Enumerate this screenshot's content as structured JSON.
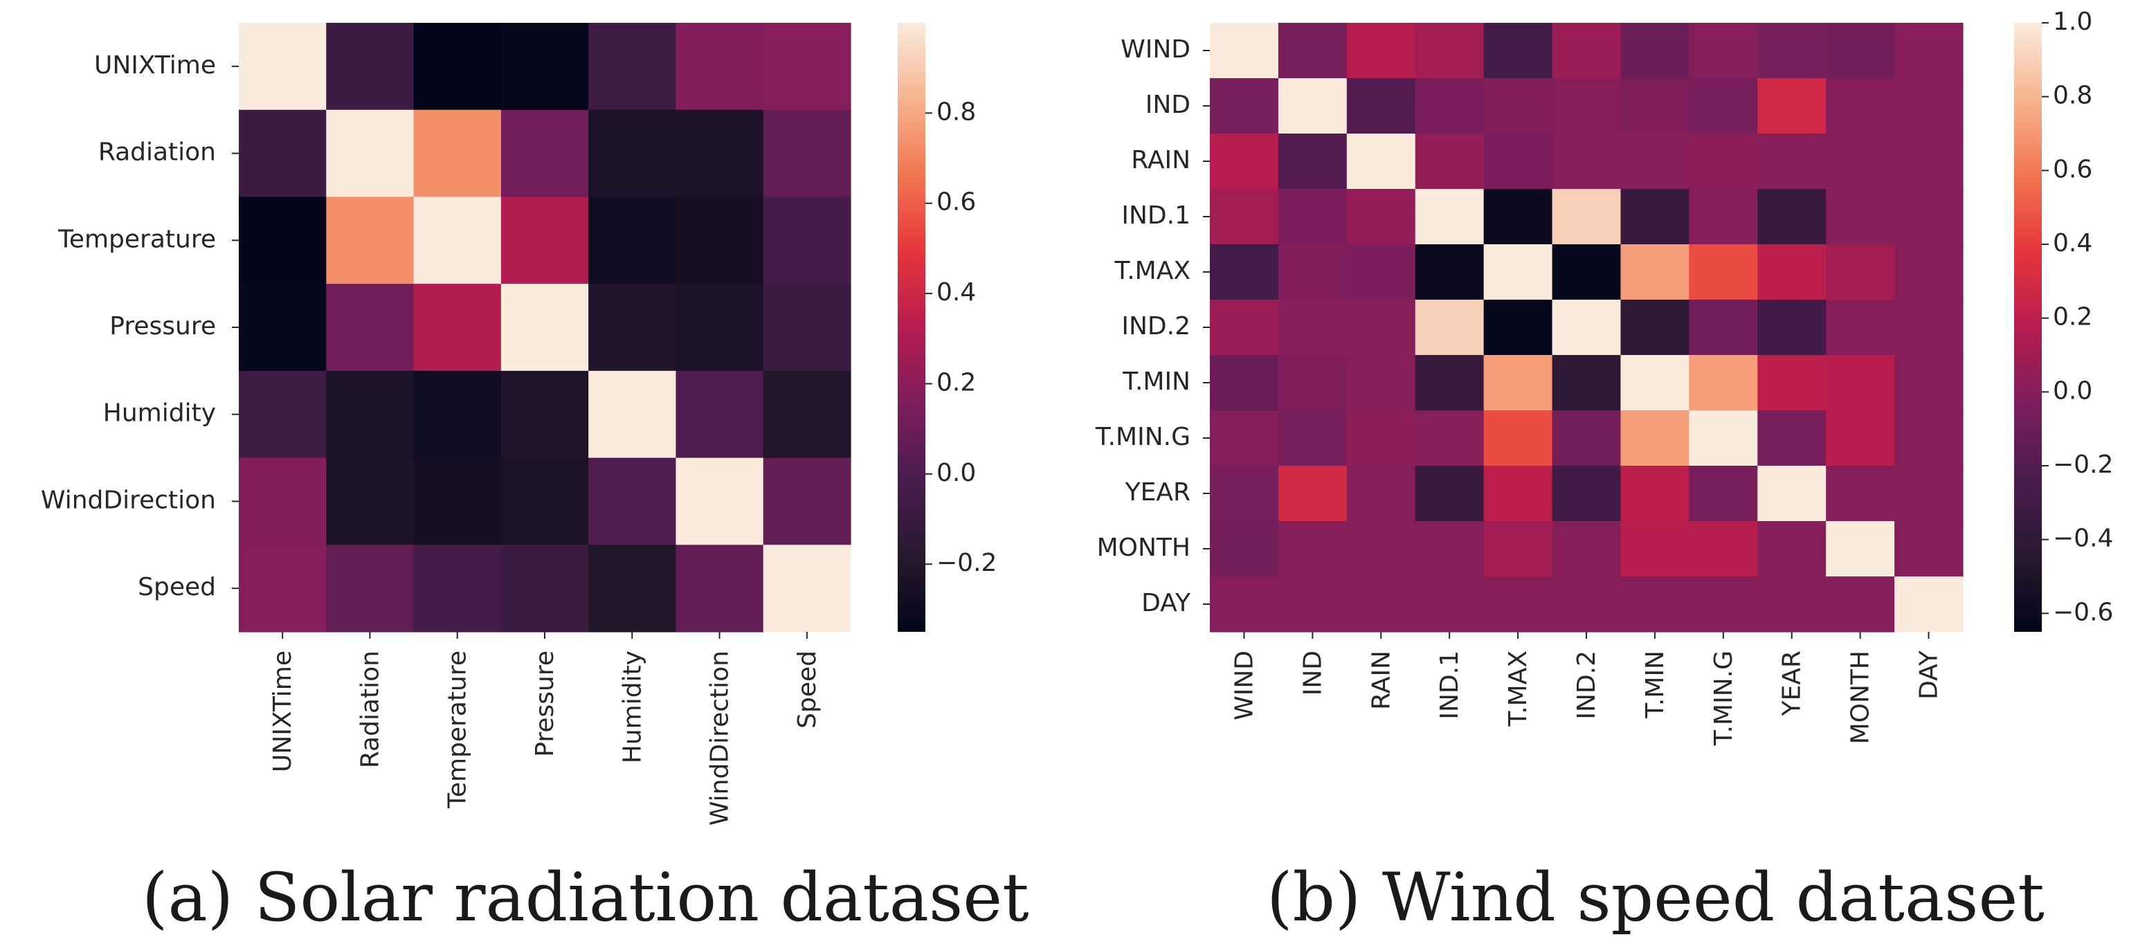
{
  "chart_data": [
    {
      "type": "heatmap",
      "caption": "(a) Solar radiation dataset",
      "labels": [
        "UNIXTime",
        "Radiation",
        "Temperature",
        "Pressure",
        "Humidity",
        "WindDirection",
        "Speed"
      ],
      "values": [
        [
          1.0,
          -0.08,
          -0.35,
          -0.33,
          -0.07,
          0.17,
          0.18
        ],
        [
          -0.08,
          1.0,
          0.73,
          0.12,
          -0.23,
          -0.23,
          0.07
        ],
        [
          -0.35,
          0.73,
          1.0,
          0.31,
          -0.29,
          -0.26,
          -0.03
        ],
        [
          -0.33,
          0.12,
          0.31,
          1.0,
          -0.22,
          -0.23,
          -0.08
        ],
        [
          -0.07,
          -0.23,
          -0.29,
          -0.22,
          1.0,
          -0.0,
          -0.21
        ],
        [
          0.17,
          -0.23,
          -0.26,
          -0.23,
          -0.0,
          1.0,
          0.07
        ],
        [
          0.18,
          0.07,
          -0.03,
          -0.08,
          -0.21,
          0.07,
          1.0
        ]
      ],
      "colorbar": {
        "min": -0.35,
        "max": 1.0,
        "ticks": [
          "0.8",
          "0.6",
          "0.4",
          "0.2",
          "0.0",
          "−0.2"
        ],
        "tick_values": [
          0.8,
          0.6,
          0.4,
          0.2,
          0.0,
          -0.2
        ]
      },
      "colormap": "rocket"
    },
    {
      "type": "heatmap",
      "caption": "(b) Wind speed dataset",
      "labels": [
        "WIND",
        "IND",
        "RAIN",
        "IND.1",
        "T.MAX",
        "IND.2",
        "T.MIN",
        "T.MIN.G",
        "YEAR",
        "MONTH",
        "DAY"
      ],
      "values": [
        [
          1.0,
          -0.05,
          0.18,
          0.1,
          -0.28,
          0.08,
          -0.11,
          0.0,
          -0.05,
          -0.07,
          0.0
        ],
        [
          -0.05,
          1.0,
          -0.2,
          -0.03,
          -0.02,
          0.0,
          -0.02,
          -0.05,
          0.28,
          0.0,
          0.0
        ],
        [
          0.18,
          -0.2,
          1.0,
          0.05,
          -0.03,
          0.0,
          0.0,
          0.02,
          0.0,
          0.0,
          0.0
        ],
        [
          0.1,
          -0.03,
          0.05,
          1.0,
          -0.6,
          0.9,
          -0.35,
          0.0,
          -0.35,
          0.0,
          0.0
        ],
        [
          -0.28,
          -0.02,
          -0.03,
          -0.6,
          1.0,
          -0.62,
          0.72,
          0.45,
          0.2,
          0.1,
          0.0
        ],
        [
          0.08,
          0.0,
          0.0,
          0.9,
          -0.62,
          1.0,
          -0.4,
          -0.07,
          -0.3,
          0.0,
          0.0
        ],
        [
          -0.11,
          -0.02,
          0.0,
          -0.35,
          0.72,
          -0.4,
          1.0,
          0.72,
          0.2,
          0.18,
          0.0
        ],
        [
          0.0,
          -0.05,
          0.02,
          0.0,
          0.45,
          -0.07,
          0.72,
          1.0,
          -0.05,
          0.18,
          0.0
        ],
        [
          -0.05,
          0.28,
          0.0,
          -0.35,
          0.2,
          -0.3,
          0.2,
          -0.05,
          1.0,
          0.0,
          0.0
        ],
        [
          -0.07,
          0.0,
          0.0,
          0.0,
          0.1,
          0.0,
          0.18,
          0.18,
          0.0,
          1.0,
          0.0
        ],
        [
          0.0,
          0.0,
          0.0,
          0.0,
          0.0,
          0.0,
          0.0,
          0.0,
          0.0,
          0.0,
          1.0
        ]
      ],
      "colorbar": {
        "min": -0.65,
        "max": 1.0,
        "ticks": [
          "1.0",
          "0.8",
          "0.6",
          "0.4",
          "0.2",
          "0.0",
          "−0.2",
          "−0.4",
          "−0.6"
        ],
        "tick_values": [
          1.0,
          0.8,
          0.6,
          0.4,
          0.2,
          0.0,
          -0.2,
          -0.4,
          -0.6
        ]
      },
      "colormap": "rocket"
    }
  ]
}
